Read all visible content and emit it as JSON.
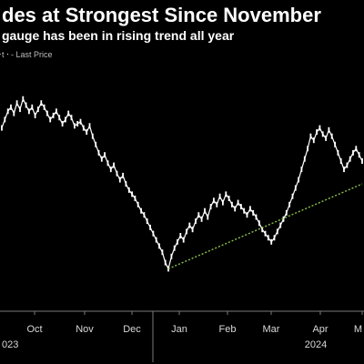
{
  "chart_data": {
    "type": "line",
    "title": "des at Strongest Since November",
    "subtitle": "gauge has been in rising trend all year",
    "legend": [
      {
        "label": "t",
        "color": "#9e9e9e"
      },
      {
        "label": "- Last Price",
        "color": "#ffffff"
      }
    ],
    "x_tick_labels": [
      "Oct",
      "Nov",
      "Dec",
      "Jan",
      "Feb",
      "Mar",
      "Apr",
      "M"
    ],
    "year_labels": [
      "023",
      "2024"
    ],
    "grid": false,
    "colors": {
      "background": "#000000",
      "price": "#ffffff",
      "trendline": "#8bc34a"
    },
    "series": [
      {
        "name": "Last Price",
        "values": [
          70,
          74,
          78,
          80,
          77,
          82,
          79,
          84,
          81,
          78,
          80,
          76,
          79,
          82,
          80,
          77,
          74,
          76,
          78,
          75,
          72,
          74,
          77,
          75,
          71,
          72,
          73,
          70,
          68,
          71,
          66,
          62,
          58,
          55,
          57,
          53,
          50,
          52,
          48,
          45,
          47,
          43,
          40,
          38,
          36,
          33,
          30,
          28,
          25,
          22,
          19,
          16,
          13,
          10,
          5,
          2,
          8,
          12,
          15,
          18,
          16,
          20,
          23,
          21,
          25,
          28,
          26,
          30,
          27,
          32,
          35,
          33,
          37,
          34,
          38,
          36,
          33,
          31,
          34,
          32,
          30,
          28,
          31,
          29,
          27,
          24,
          21,
          19,
          17,
          15,
          17,
          20,
          23,
          26,
          29,
          33,
          37,
          41,
          45,
          50,
          55,
          60,
          66,
          64,
          68,
          70,
          67,
          65,
          69,
          66,
          62,
          58,
          54,
          50,
          52,
          55,
          58,
          60,
          57,
          54
        ]
      }
    ],
    "trendline": {
      "start_index": 55,
      "start_value": 2,
      "end_index": 119,
      "end_value": 43
    }
  }
}
